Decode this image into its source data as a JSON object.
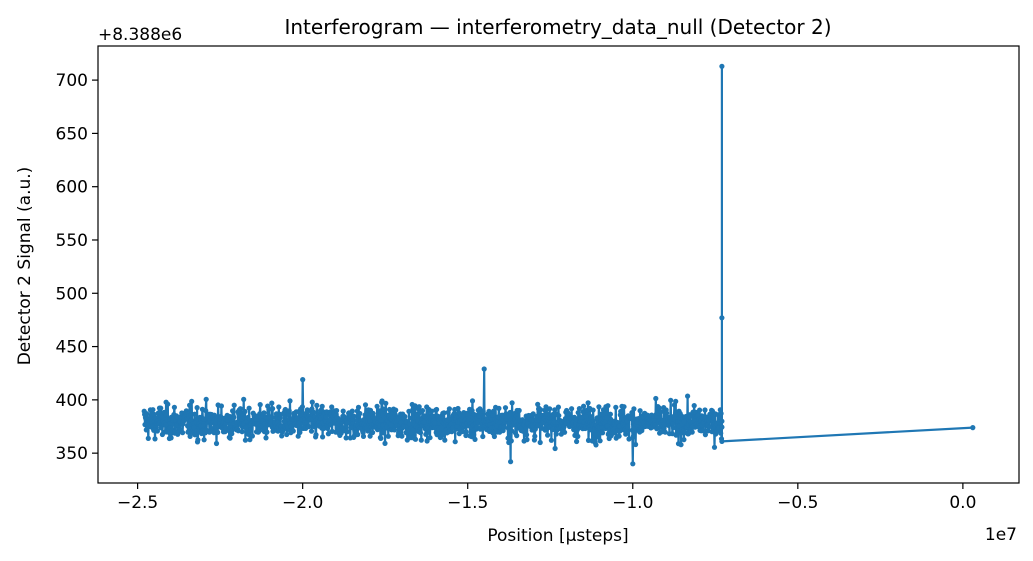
{
  "chart_data": {
    "type": "line",
    "title": "Interferogram — interferometry_data_null (Detector 2)",
    "xlabel": "Position [µsteps]",
    "ylabel": "Detector 2 Signal (a.u.)",
    "x_offset_text": "1e7",
    "y_offset_text": "+8.388e6",
    "xlim": [
      -2.62,
      0.17
    ],
    "ylim": [
      322,
      732
    ],
    "x_ticks": [
      -2.5,
      -2.0,
      -1.5,
      -1.0,
      -0.5,
      0.0
    ],
    "x_tick_labels": [
      "−2.5",
      "−2.0",
      "−1.5",
      "−1.0",
      "−0.5",
      "0.0"
    ],
    "y_ticks": [
      350,
      400,
      450,
      500,
      550,
      600,
      650,
      700
    ],
    "y_tick_labels": [
      "350",
      "400",
      "450",
      "500",
      "550",
      "600",
      "650",
      "700"
    ],
    "x_units_note": "x values in units of 1e7 µsteps; y values are offsets from 8.388e6",
    "series": [
      {
        "color": "#1f77b4",
        "noisy_segment": {
          "x_start": -2.48,
          "x_end": -0.73,
          "y_center": 379,
          "y_min": 340,
          "y_max": 429,
          "approx_points": 1400
        },
        "spikes": [
          {
            "x": -1.45,
            "y": 429
          },
          {
            "x": -1.37,
            "y": 342
          },
          {
            "x": -1.0,
            "y": 340
          },
          {
            "x": -2.0,
            "y": 419
          }
        ],
        "tail_points": [
          {
            "x": -0.73,
            "y": 380
          },
          {
            "x": -0.73,
            "y": 713
          },
          {
            "x": -0.73,
            "y": 477
          },
          {
            "x": -0.73,
            "y": 361
          },
          {
            "x": 0.03,
            "y": 374
          }
        ]
      }
    ]
  }
}
